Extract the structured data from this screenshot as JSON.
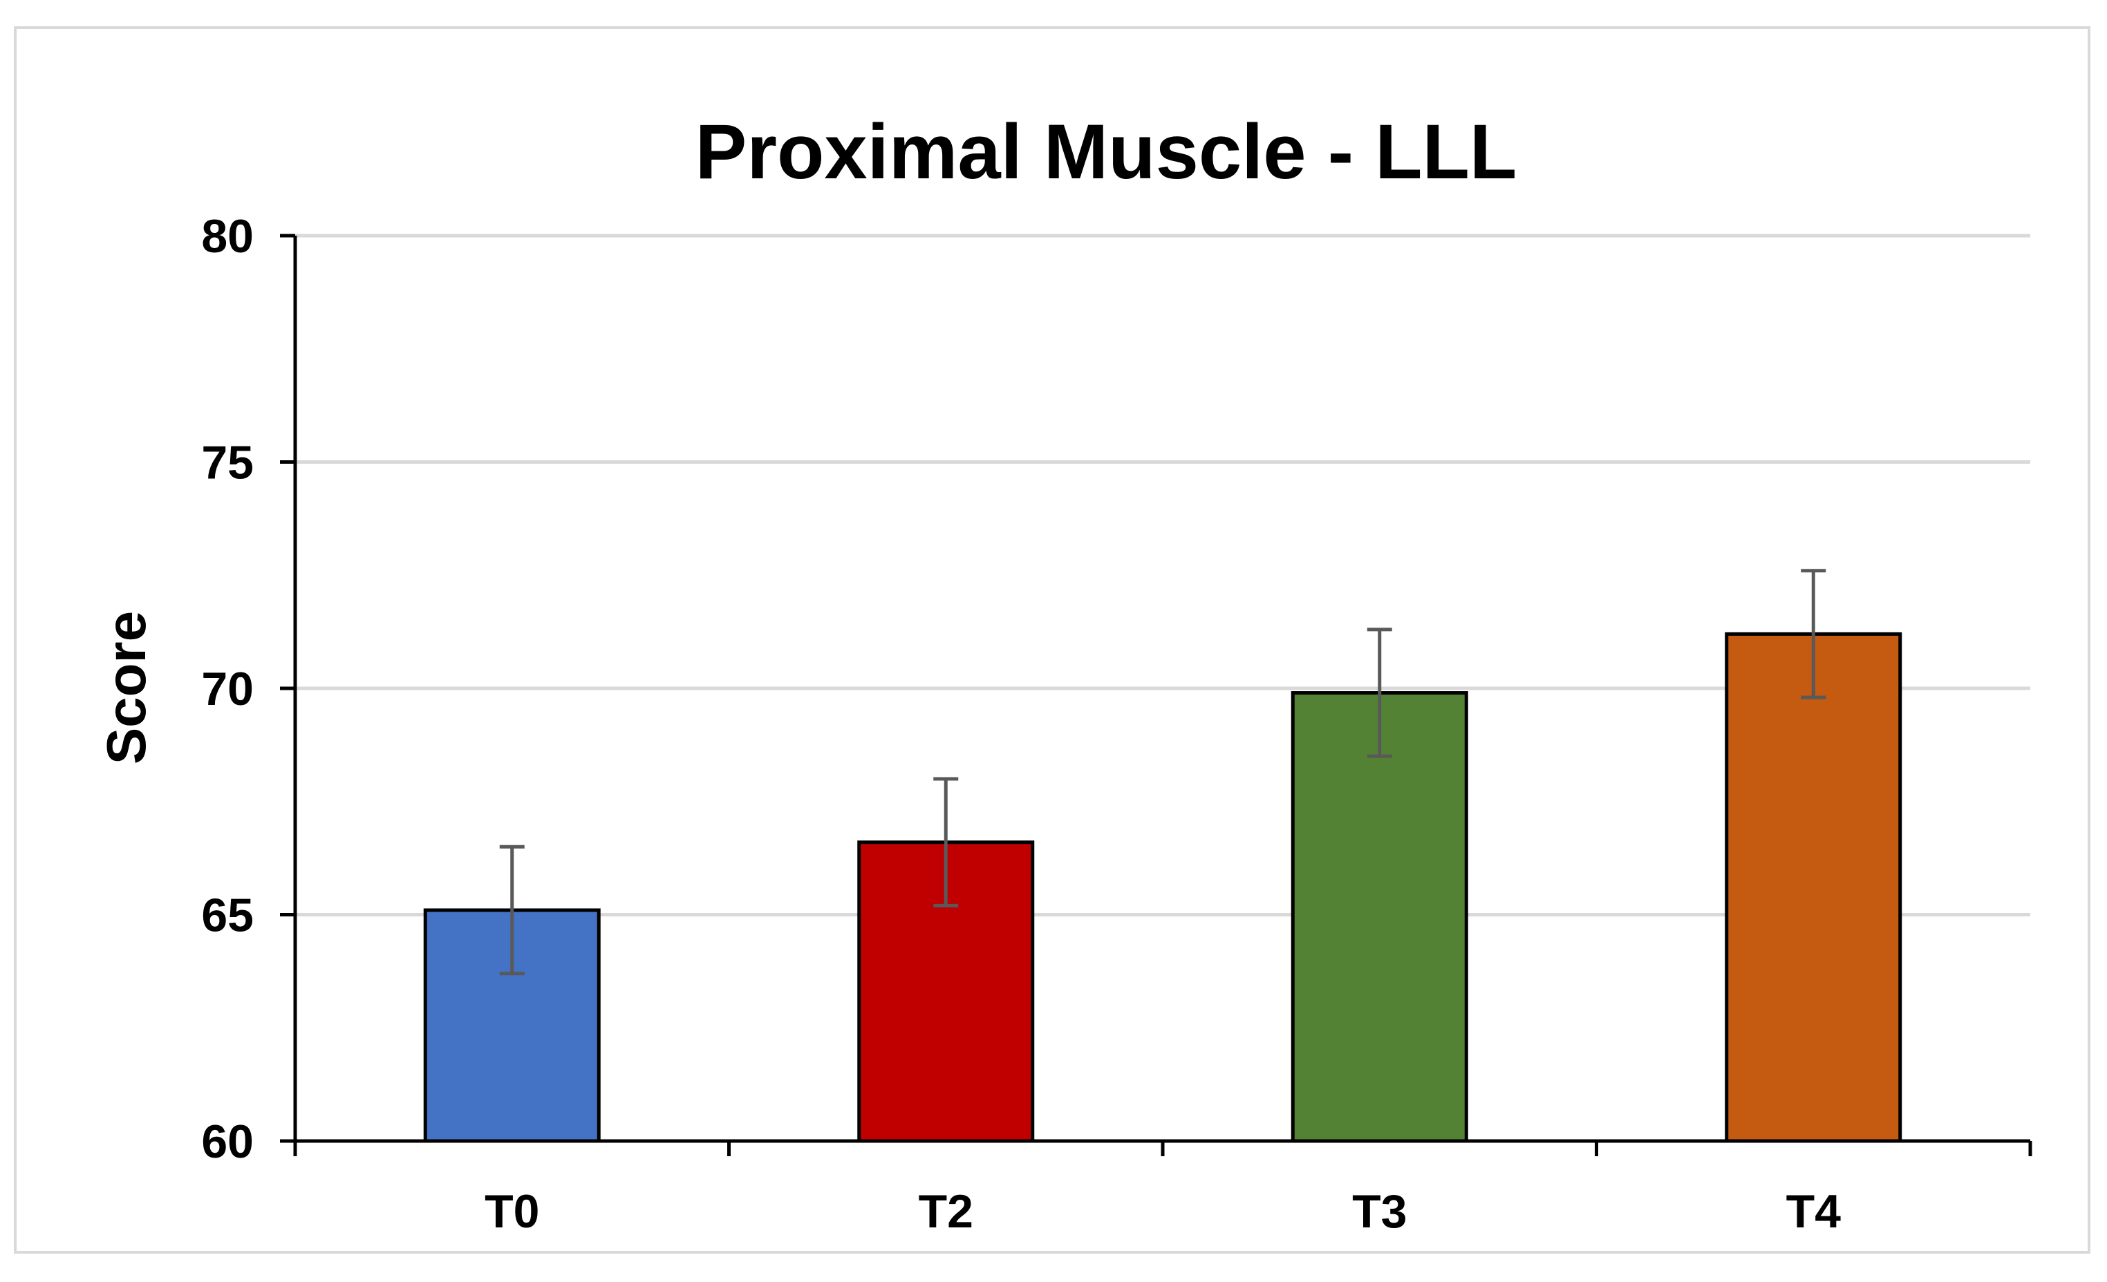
{
  "chart_data": {
    "type": "bar",
    "title": "Proximal Muscle - LLL",
    "xlabel": "",
    "ylabel": "Score",
    "categories": [
      "T0",
      "T2",
      "T3",
      "T4"
    ],
    "values": [
      65.1,
      66.6,
      69.9,
      71.2
    ],
    "error": [
      1.4,
      1.4,
      1.4,
      1.4
    ],
    "colors": [
      "#4472c4",
      "#c00000",
      "#548235",
      "#c55a11"
    ],
    "ylim": [
      60,
      80
    ],
    "yticks": [
      60,
      65,
      70,
      75,
      80
    ],
    "ytick_labels": [
      "60",
      "65",
      "70",
      "75",
      "80"
    ],
    "grid": true,
    "legend": "none"
  }
}
